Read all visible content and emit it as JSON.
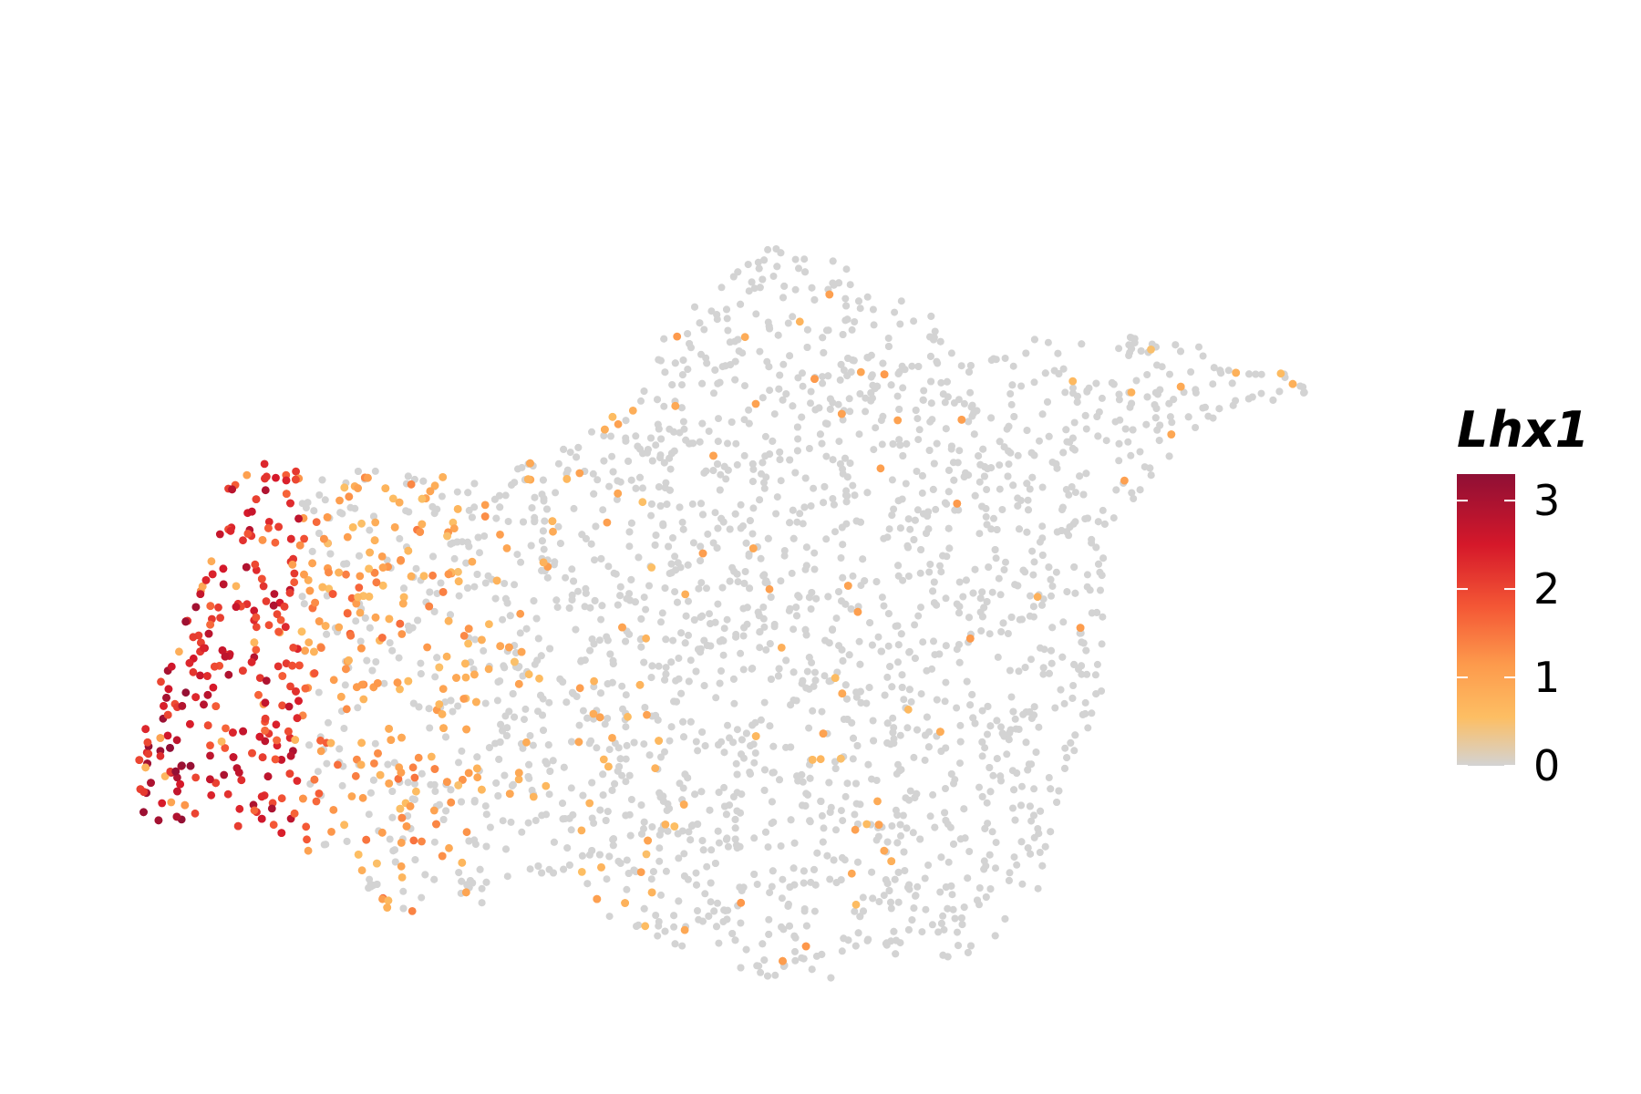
{
  "chart_data": {
    "type": "scatter",
    "title": "",
    "xlabel": "",
    "ylabel": "",
    "axes_visible": false,
    "grid": false,
    "legend": {
      "title": "Lhx1",
      "placement": "right",
      "min": 0,
      "max": 3.3,
      "ticks": [
        {
          "value": 0,
          "label": "0"
        },
        {
          "value": 1,
          "label": "1"
        },
        {
          "value": 2,
          "label": "2"
        },
        {
          "value": 3,
          "label": "3"
        }
      ]
    },
    "colorscale": [
      {
        "value": 0.0,
        "color": "#d3d3d3"
      },
      {
        "value": 0.55,
        "color": "#fdbe63"
      },
      {
        "value": 1.15,
        "color": "#fd9a4c"
      },
      {
        "value": 1.8,
        "color": "#f45735"
      },
      {
        "value": 2.5,
        "color": "#d5182a"
      },
      {
        "value": 3.3,
        "color": "#8f0f35"
      }
    ],
    "point_color_background": "#d3d3d3",
    "point_count_estimate": 4000,
    "xlim": [
      0,
      1
    ],
    "ylim": [
      0,
      1
    ]
  }
}
